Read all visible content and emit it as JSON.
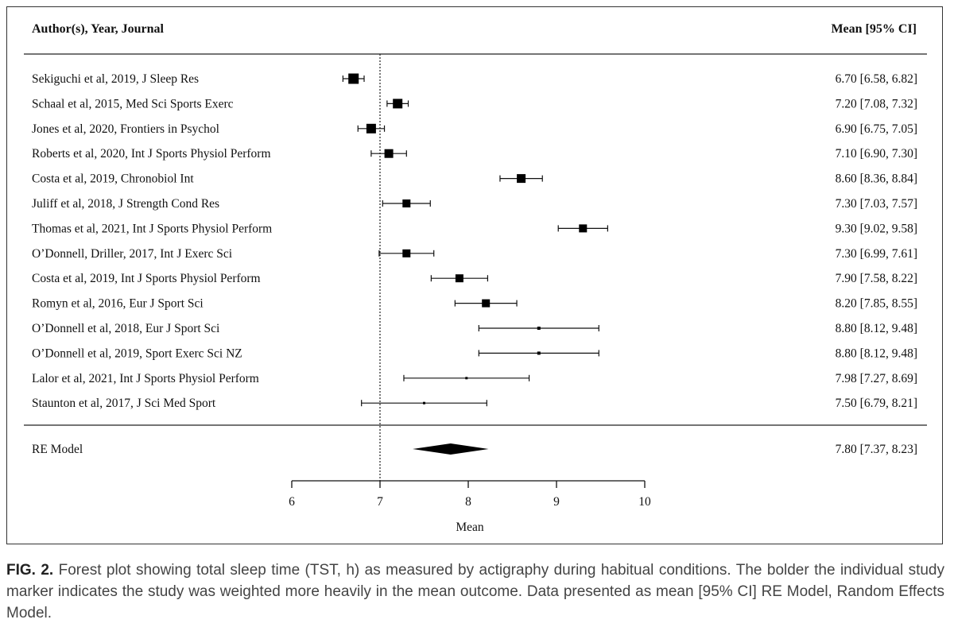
{
  "chart_data": {
    "type": "forest",
    "header_left": "Author(s), Year, Journal",
    "header_right": "Mean [95% CI]",
    "xlabel": "Mean",
    "xlim": [
      6,
      10
    ],
    "ticks": [
      6,
      7,
      8,
      9,
      10
    ],
    "tick_labels": [
      "6",
      "7",
      "8",
      "9",
      "10"
    ],
    "reference_line": 7,
    "studies": [
      {
        "label": "Sekiguchi et al, 2019, J Sleep Res",
        "mean": 6.7,
        "lower": 6.58,
        "upper": 6.82,
        "ci_text": "6.70 [6.58, 6.82]",
        "marker": 13
      },
      {
        "label": "Schaal et al, 2015, Med Sci Sports Exerc",
        "mean": 7.2,
        "lower": 7.08,
        "upper": 7.32,
        "ci_text": "7.20 [7.08, 7.32]",
        "marker": 12
      },
      {
        "label": "Jones et al, 2020, Frontiers in Psychol",
        "mean": 6.9,
        "lower": 6.75,
        "upper": 7.05,
        "ci_text": "6.90 [6.75, 7.05]",
        "marker": 12
      },
      {
        "label": "Roberts et al, 2020, Int J Sports Physiol Perform",
        "mean": 7.1,
        "lower": 6.9,
        "upper": 7.3,
        "ci_text": "7.10 [6.90, 7.30]",
        "marker": 11
      },
      {
        "label": "Costa et al, 2019, Chronobiol Int",
        "mean": 8.6,
        "lower": 8.36,
        "upper": 8.84,
        "ci_text": "8.60 [8.36, 8.84]",
        "marker": 11
      },
      {
        "label": "Juliff et al, 2018, J Strength Cond Res",
        "mean": 7.3,
        "lower": 7.03,
        "upper": 7.57,
        "ci_text": "7.30 [7.03, 7.57]",
        "marker": 10
      },
      {
        "label": "Thomas et al, 2021, Int J Sports Physiol Perform",
        "mean": 9.3,
        "lower": 9.02,
        "upper": 9.58,
        "ci_text": "9.30 [9.02, 9.58]",
        "marker": 10
      },
      {
        "label": "O’Donnell, Driller, 2017, Int J Exerc Sci",
        "mean": 7.3,
        "lower": 6.99,
        "upper": 7.61,
        "ci_text": "7.30 [6.99, 7.61]",
        "marker": 10
      },
      {
        "label": "Costa et al, 2019, Int J Sports Physiol Perform",
        "mean": 7.9,
        "lower": 7.58,
        "upper": 8.22,
        "ci_text": "7.90 [7.58, 8.22]",
        "marker": 10
      },
      {
        "label": "Romyn et al, 2016, Eur J Sport Sci",
        "mean": 8.2,
        "lower": 7.85,
        "upper": 8.55,
        "ci_text": "8.20 [7.85, 8.55]",
        "marker": 10
      },
      {
        "label": "O’Donnell et al, 2018, Eur J Sport Sci",
        "mean": 8.8,
        "lower": 8.12,
        "upper": 9.48,
        "ci_text": "8.80 [8.12, 9.48]",
        "marker": 4
      },
      {
        "label": "O’Donnell et al, 2019, Sport Exerc Sci NZ",
        "mean": 8.8,
        "lower": 8.12,
        "upper": 9.48,
        "ci_text": "8.80 [8.12, 9.48]",
        "marker": 4
      },
      {
        "label": "Lalor et al, 2021, Int J Sports Physiol Perform",
        "mean": 7.98,
        "lower": 7.27,
        "upper": 8.69,
        "ci_text": "7.98 [7.27, 8.69]",
        "marker": 3
      },
      {
        "label": "Staunton et al, 2017, J Sci Med Sport",
        "mean": 7.5,
        "lower": 6.79,
        "upper": 8.21,
        "ci_text": "7.50 [6.79, 8.21]",
        "marker": 3
      }
    ],
    "summary": {
      "label": "RE Model",
      "mean": 7.8,
      "lower": 7.37,
      "upper": 8.23,
      "ci_text": "7.80 [7.37, 8.23]"
    }
  },
  "caption": {
    "fig_label": "FIG. 2.",
    "text": " Forest plot showing total sleep time (TST, h) as measured by actigraphy during habitual conditions. The bolder the individual study marker indicates the study was weighted more heavily in the mean outcome. Data presented as mean [95% CI] RE Model, Random Effects Model."
  }
}
